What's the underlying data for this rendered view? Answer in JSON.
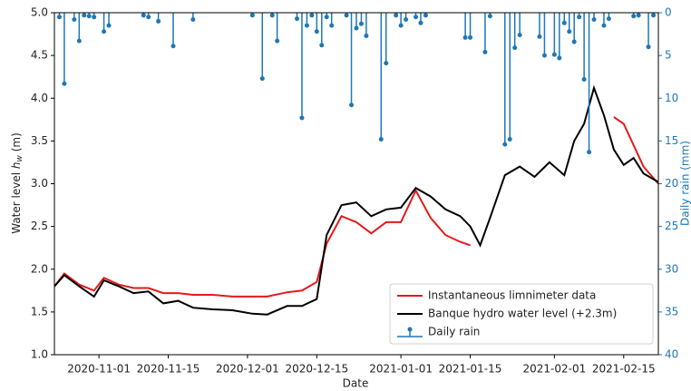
{
  "chart_data": {
    "type": "line",
    "xlabel": "Date",
    "ylabel": {
      "text": "Water level",
      "symbol": "h",
      "subscript": "w",
      "unit": "(m)"
    },
    "y2label": "Daily rain (mm)",
    "xlim": [
      "2020-10-23",
      "2021-02-22"
    ],
    "xticks": [
      "2020-11-01",
      "2020-11-15",
      "2020-12-01",
      "2020-12-15",
      "2021-01-01",
      "2021-01-15",
      "2021-02-01",
      "2021-02-15"
    ],
    "ylim": [
      1.0,
      5.0
    ],
    "yticks": [
      {
        "value": 1.0,
        "label": "1.0"
      },
      {
        "value": 1.5,
        "label": "1.5"
      },
      {
        "value": 2.0,
        "label": "2.0"
      },
      {
        "value": 2.5,
        "label": "2.5"
      },
      {
        "value": 3.0,
        "label": "3.0"
      },
      {
        "value": 3.5,
        "label": "3.5"
      },
      {
        "value": 4.0,
        "label": "4.0"
      },
      {
        "value": 4.5,
        "label": "4.5"
      },
      {
        "value": 5.0,
        "label": "5.0"
      }
    ],
    "y2lim": [
      40,
      0
    ],
    "y2ticks": [
      0,
      5,
      10,
      15,
      20,
      25,
      30,
      35,
      40
    ],
    "y2color": "#1f77b4",
    "legend": "lower right",
    "x": [
      "2020-10-23",
      "2020-10-25",
      "2020-10-28",
      "2020-10-31",
      "2020-11-02",
      "2020-11-05",
      "2020-11-08",
      "2020-11-11",
      "2020-11-14",
      "2020-11-17",
      "2020-11-20",
      "2020-11-24",
      "2020-11-28",
      "2020-12-02",
      "2020-12-05",
      "2020-12-09",
      "2020-12-12",
      "2020-12-15",
      "2020-12-17",
      "2020-12-20",
      "2020-12-23",
      "2020-12-26",
      "2020-12-29",
      "2021-01-01",
      "2021-01-04",
      "2021-01-07",
      "2021-01-10",
      "2021-01-13",
      "2021-01-15",
      "2021-01-17",
      "2021-01-19",
      "2021-01-22",
      "2021-01-25",
      "2021-01-28",
      "2021-01-31",
      "2021-02-03",
      "2021-02-05",
      "2021-02-07",
      "2021-02-09",
      "2021-02-11",
      "2021-02-13",
      "2021-02-15",
      "2021-02-17",
      "2021-02-19",
      "2021-02-22"
    ],
    "series": [
      {
        "name": "Instantaneous limnimeter data",
        "color": "#e31a1c",
        "values": [
          1.8,
          1.95,
          1.82,
          1.75,
          1.9,
          1.82,
          1.78,
          1.78,
          1.72,
          1.72,
          1.7,
          1.7,
          1.68,
          1.68,
          1.68,
          1.73,
          1.75,
          1.85,
          2.3,
          2.62,
          2.55,
          2.42,
          2.55,
          2.55,
          2.92,
          2.6,
          2.4,
          2.32,
          2.28,
          null,
          null,
          null,
          null,
          null,
          null,
          null,
          null,
          null,
          null,
          null,
          3.78,
          3.7,
          3.45,
          3.2,
          3.0
        ]
      },
      {
        "name": "Banque hydro water level (+2.3m)",
        "color": "#000000",
        "values": [
          1.8,
          1.93,
          1.8,
          1.68,
          1.87,
          1.8,
          1.72,
          1.74,
          1.6,
          1.63,
          1.55,
          1.53,
          1.52,
          1.48,
          1.47,
          1.57,
          1.57,
          1.65,
          2.4,
          2.75,
          2.78,
          2.62,
          2.7,
          2.72,
          2.95,
          2.85,
          2.7,
          2.62,
          2.5,
          2.28,
          2.6,
          3.1,
          3.2,
          3.08,
          3.25,
          3.1,
          3.5,
          3.7,
          4.12,
          3.8,
          3.4,
          3.22,
          3.3,
          3.12,
          3.02
        ]
      },
      {
        "name": "Daily rain",
        "color": "#1f77b4",
        "type": "stem",
        "axis": "y2",
        "x": [
          "2020-10-24",
          "2020-10-25",
          "2020-10-27",
          "2020-10-28",
          "2020-10-29",
          "2020-10-30",
          "2020-10-31",
          "2020-11-02",
          "2020-11-03",
          "2020-11-10",
          "2020-11-11",
          "2020-11-13",
          "2020-11-16",
          "2020-11-20",
          "2020-12-02",
          "2020-12-04",
          "2020-12-06",
          "2020-12-07",
          "2020-12-11",
          "2020-12-12",
          "2020-12-13",
          "2020-12-14",
          "2020-12-15",
          "2020-12-16",
          "2020-12-17",
          "2020-12-18",
          "2020-12-21",
          "2020-12-22",
          "2020-12-23",
          "2020-12-24",
          "2020-12-25",
          "2020-12-28",
          "2020-12-29",
          "2020-12-31",
          "2021-01-01",
          "2021-01-02",
          "2021-01-04",
          "2021-01-05",
          "2021-01-06",
          "2021-01-14",
          "2021-01-15",
          "2021-01-18",
          "2021-01-19",
          "2021-01-22",
          "2021-01-23",
          "2021-01-24",
          "2021-01-25",
          "2021-01-29",
          "2021-01-30",
          "2021-02-01",
          "2021-02-02",
          "2021-02-03",
          "2021-02-04",
          "2021-02-05",
          "2021-02-06",
          "2021-02-07",
          "2021-02-08",
          "2021-02-09",
          "2021-02-11",
          "2021-02-12",
          "2021-02-17",
          "2021-02-18",
          "2021-02-20",
          "2021-02-21"
        ],
        "values": [
          0.5,
          8.3,
          0.8,
          3.3,
          0.3,
          0.4,
          0.5,
          2.2,
          1.5,
          0.3,
          0.5,
          1.0,
          3.9,
          0.8,
          0.3,
          7.7,
          0.3,
          3.3,
          0.7,
          12.3,
          1.5,
          0.3,
          2.2,
          3.8,
          0.5,
          1.5,
          0.3,
          10.8,
          1.8,
          1.3,
          2.7,
          14.8,
          5.9,
          0.3,
          1.5,
          0.8,
          0.5,
          1.2,
          0.3,
          2.9,
          2.9,
          4.6,
          0.4,
          15.4,
          14.8,
          4.1,
          2.6,
          2.8,
          5.0,
          4.9,
          5.3,
          1.2,
          2.2,
          3.4,
          0.5,
          7.8,
          16.3,
          0.8,
          1.5,
          0.7,
          0.4,
          0.3,
          4.0,
          0.3
        ]
      }
    ]
  }
}
